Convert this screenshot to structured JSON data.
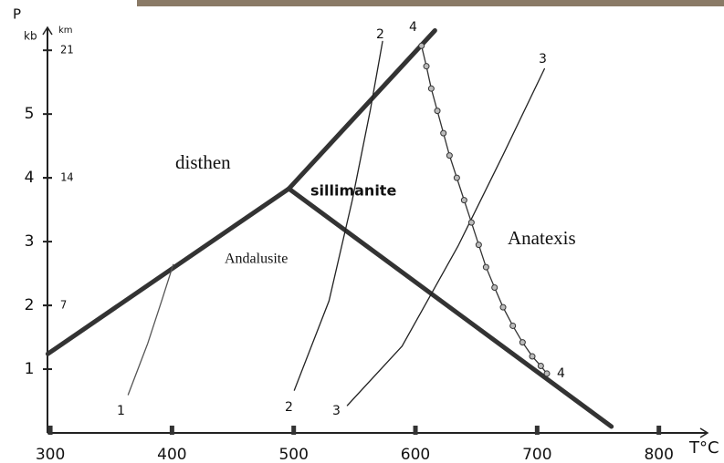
{
  "chart_data": {
    "type": "line",
    "x_label": "T°C",
    "y_label": "P",
    "y_unit": "kb",
    "y2_unit": "km",
    "xlim": [
      297.7,
      840
    ],
    "ylim": [
      0,
      6.36
    ],
    "y2lim": [
      0,
      22.26
    ],
    "xticks": [
      300,
      400,
      500,
      600,
      700,
      800
    ],
    "yticks": [
      1,
      2,
      3,
      4,
      5
    ],
    "y2ticks": [
      7,
      14,
      21
    ],
    "annotations": [
      "disthen",
      "sillimanite",
      "Andalusite",
      "Anatexis"
    ],
    "series": [
      {
        "color": "#333333",
        "width": "thick",
        "x": [
          298,
          496
        ],
        "values": [
          1.24,
          3.83
        ]
      },
      {
        "color": "#333333",
        "width": "thick",
        "x": [
          496,
          616
        ],
        "values": [
          3.83,
          6.31
        ]
      },
      {
        "color": "#333333",
        "width": "thick",
        "x": [
          496,
          761
        ],
        "values": [
          3.83,
          0.1
        ]
      },
      {
        "name": "1",
        "color": "#555555",
        "width": "thin",
        "x": [
          364,
          380,
          392,
          401
        ],
        "values": [
          0.6,
          1.4,
          2.1,
          2.64
        ]
      },
      {
        "name": "2",
        "color": "#222222",
        "width": "thin",
        "x": [
          500.5,
          529,
          548,
          563,
          573
        ],
        "values": [
          0.67,
          2.07,
          3.64,
          5.07,
          6.14
        ]
      },
      {
        "name": "3",
        "color": "#222222",
        "width": "thin",
        "x": [
          544,
          589,
          635,
          672,
          706
        ],
        "values": [
          0.43,
          1.36,
          2.93,
          4.36,
          5.71
        ]
      },
      {
        "name": "4",
        "color": "#333333",
        "width": "thin",
        "marker": "circle",
        "x": [
          605,
          609,
          613,
          618,
          623,
          628,
          634,
          640,
          646,
          652,
          658,
          665,
          672,
          680,
          688,
          696,
          703,
          708
        ],
        "values": [
          6.07,
          5.75,
          5.4,
          5.05,
          4.7,
          4.35,
          4.0,
          3.65,
          3.3,
          2.95,
          2.6,
          2.28,
          1.97,
          1.68,
          1.42,
          1.2,
          1.05,
          0.93
        ]
      }
    ]
  }
}
